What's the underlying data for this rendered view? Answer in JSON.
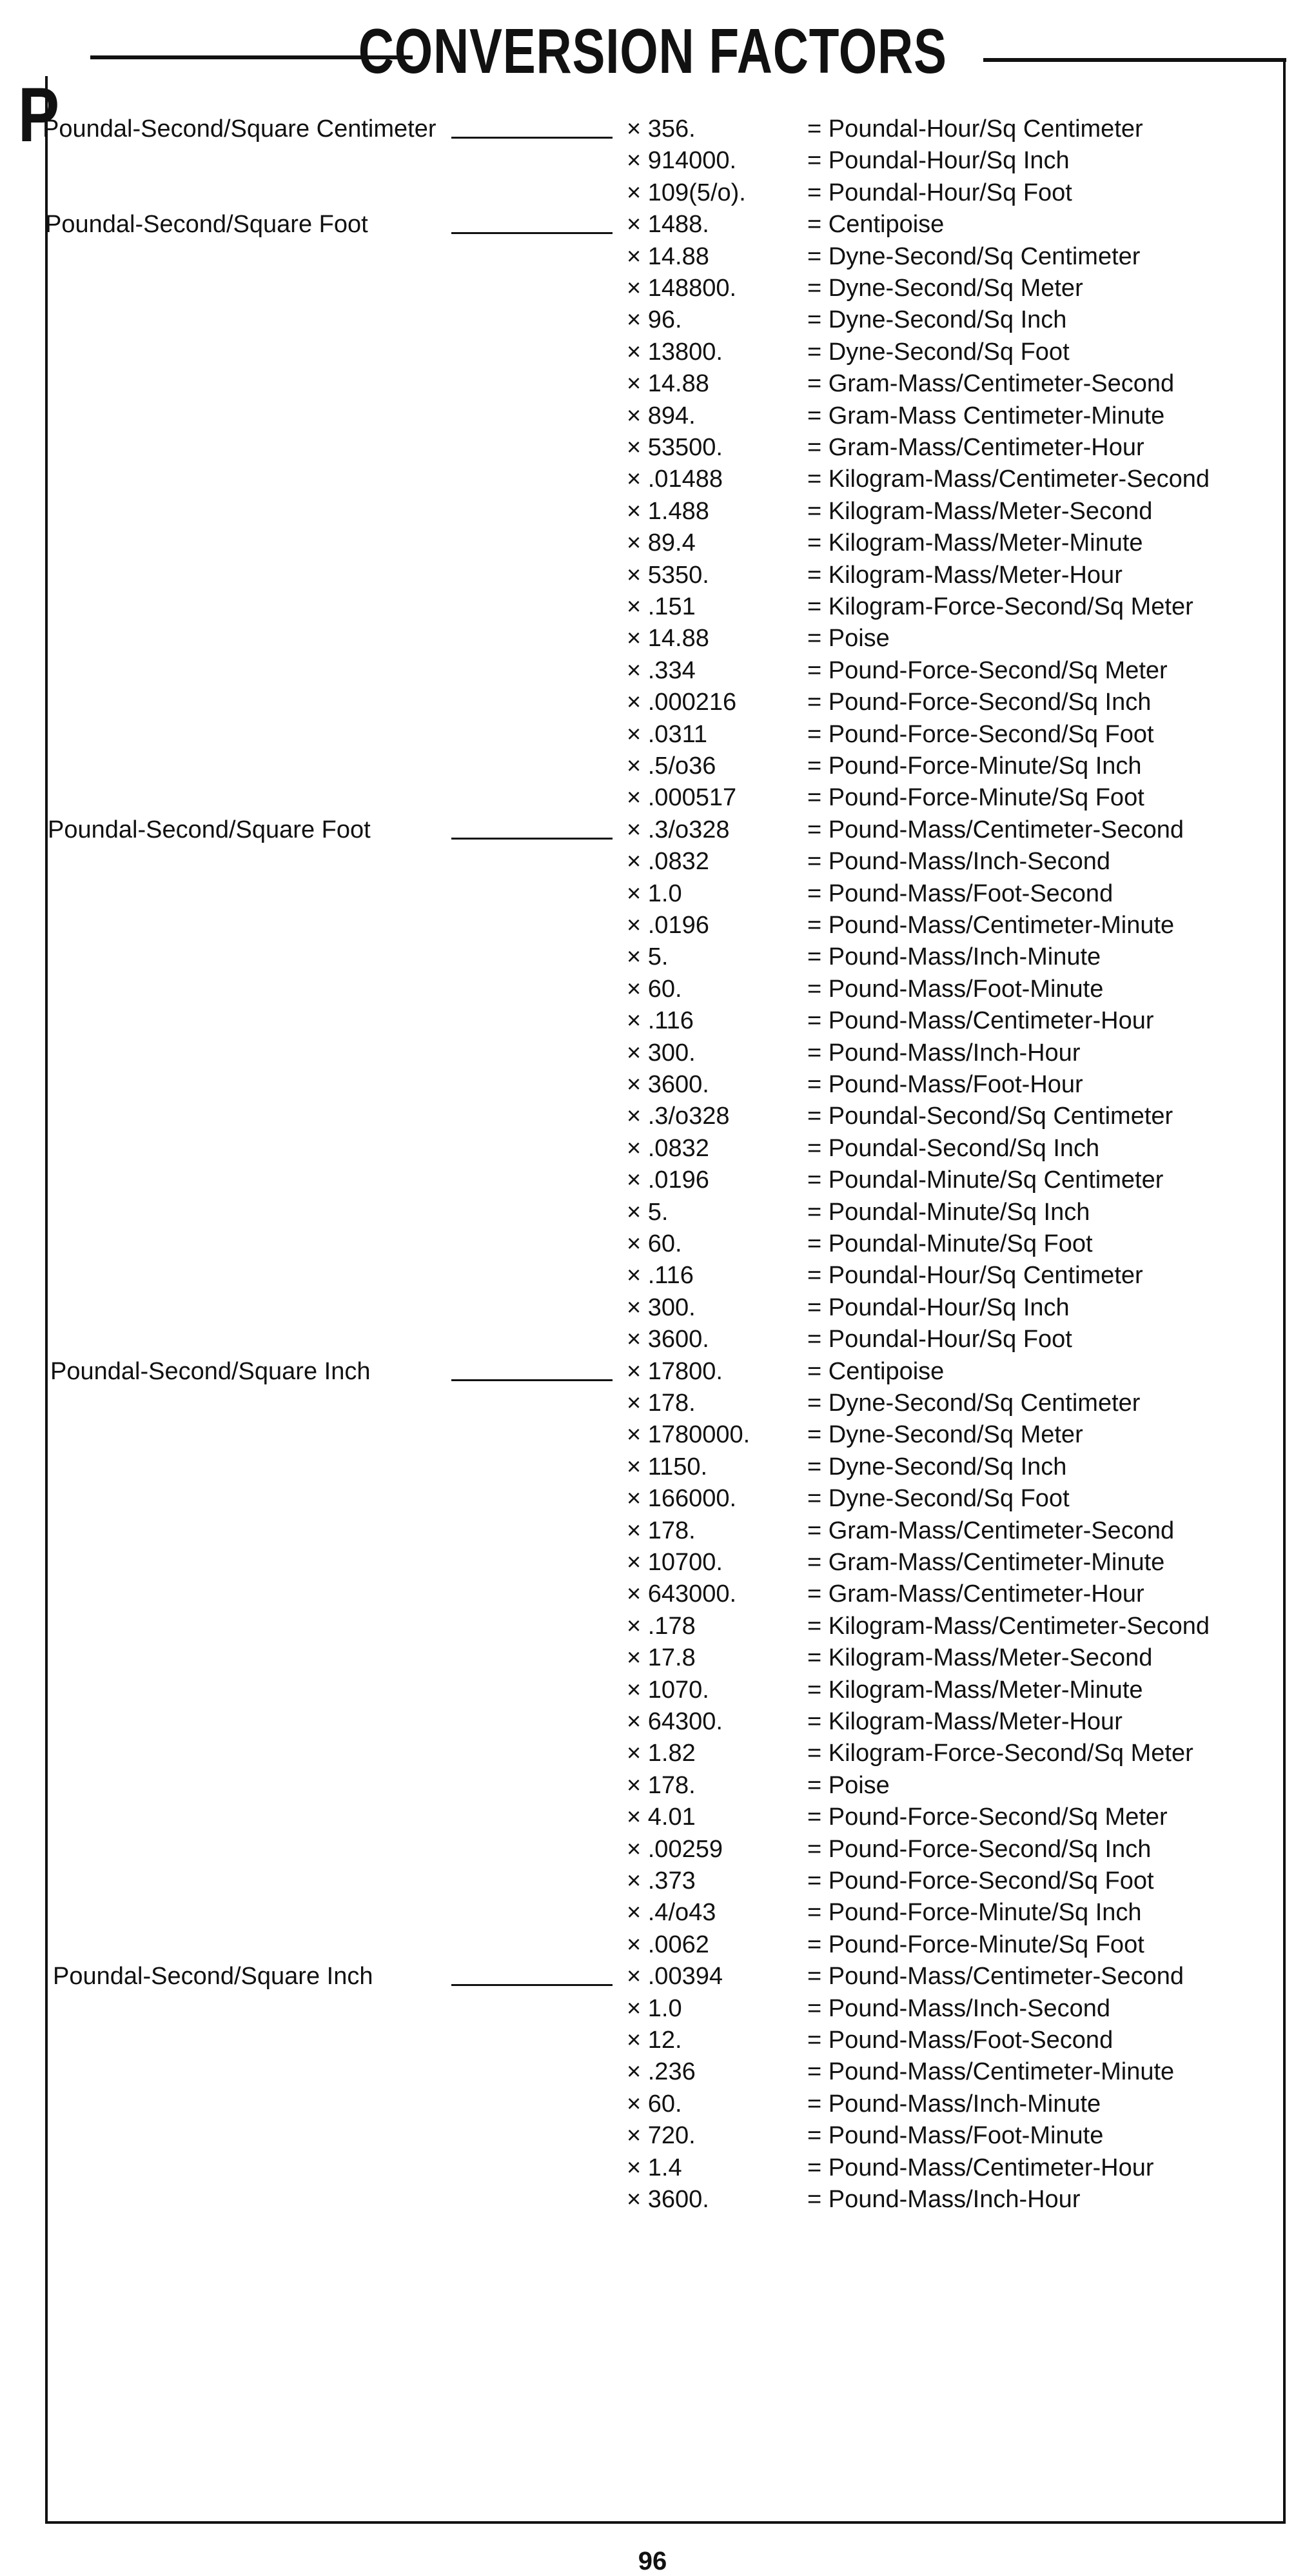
{
  "header": {
    "letter": "P",
    "title": "CONVERSION FACTORS"
  },
  "sections": [
    {
      "label": "Poundal-Second/Square Centimeter",
      "rows": [
        [
          "× 356.",
          "= Poundal-Hour/Sq Centimeter"
        ],
        [
          "× 914000.",
          "= Poundal-Hour/Sq Inch"
        ],
        [
          "× 109(5/o).",
          "= Poundal-Hour/Sq Foot"
        ]
      ]
    },
    {
      "label": "Poundal-Second/Square Foot",
      "rows": [
        [
          "× 1488.",
          "= Centipoise"
        ],
        [
          "× 14.88",
          "= Dyne-Second/Sq Centimeter"
        ],
        [
          "× 148800.",
          "= Dyne-Second/Sq Meter"
        ],
        [
          "× 96.",
          "= Dyne-Second/Sq Inch"
        ],
        [
          "× 13800.",
          "= Dyne-Second/Sq Foot"
        ],
        [
          "× 14.88",
          "= Gram-Mass/Centimeter-Second"
        ],
        [
          "× 894.",
          "= Gram-Mass Centimeter-Minute"
        ],
        [
          "× 53500.",
          "= Gram-Mass/Centimeter-Hour"
        ],
        [
          "× .01488",
          "= Kilogram-Mass/Centimeter-Second"
        ],
        [
          "× 1.488",
          "= Kilogram-Mass/Meter-Second"
        ],
        [
          "× 89.4",
          "= Kilogram-Mass/Meter-Minute"
        ],
        [
          "× 5350.",
          "= Kilogram-Mass/Meter-Hour"
        ],
        [
          "× .151",
          "= Kilogram-Force-Second/Sq Meter"
        ],
        [
          "× 14.88",
          "= Poise"
        ],
        [
          "× .334",
          "= Pound-Force-Second/Sq Meter"
        ],
        [
          "× .000216",
          "= Pound-Force-Second/Sq Inch"
        ],
        [
          "× .0311",
          "= Pound-Force-Second/Sq Foot"
        ],
        [
          "× .5/o36",
          "= Pound-Force-Minute/Sq Inch"
        ],
        [
          "× .000517",
          "= Pound-Force-Minute/Sq Foot"
        ]
      ]
    },
    {
      "label": "Poundal-Second/Square Foot",
      "rows": [
        [
          "× .3/o328",
          "= Pound-Mass/Centimeter-Second"
        ],
        [
          "× .0832",
          "= Pound-Mass/Inch-Second"
        ],
        [
          "× 1.0",
          "= Pound-Mass/Foot-Second"
        ],
        [
          "× .0196",
          "= Pound-Mass/Centimeter-Minute"
        ],
        [
          "× 5.",
          "= Pound-Mass/Inch-Minute"
        ],
        [
          "× 60.",
          "= Pound-Mass/Foot-Minute"
        ],
        [
          "× .116",
          "= Pound-Mass/Centimeter-Hour"
        ],
        [
          "× 300.",
          "= Pound-Mass/Inch-Hour"
        ],
        [
          "× 3600.",
          "= Pound-Mass/Foot-Hour"
        ],
        [
          "× .3/o328",
          "= Poundal-Second/Sq Centimeter"
        ],
        [
          "× .0832",
          "= Poundal-Second/Sq Inch"
        ],
        [
          "× .0196",
          "= Poundal-Minute/Sq Centimeter"
        ],
        [
          "× 5.",
          "= Poundal-Minute/Sq Inch"
        ],
        [
          "× 60.",
          "= Poundal-Minute/Sq Foot"
        ],
        [
          "× .116",
          "= Poundal-Hour/Sq Centimeter"
        ],
        [
          "× 300.",
          "= Poundal-Hour/Sq Inch"
        ],
        [
          "× 3600.",
          "= Poundal-Hour/Sq Foot"
        ]
      ]
    },
    {
      "label": "Poundal-Second/Square Inch",
      "rows": [
        [
          "× 17800.",
          "= Centipoise"
        ],
        [
          "× 178.",
          "= Dyne-Second/Sq Centimeter"
        ],
        [
          "× 1780000.",
          "= Dyne-Second/Sq Meter"
        ],
        [
          "× 1150.",
          "= Dyne-Second/Sq Inch"
        ],
        [
          "× 166000.",
          "= Dyne-Second/Sq Foot"
        ],
        [
          "× 178.",
          "= Gram-Mass/Centimeter-Second"
        ],
        [
          "× 10700.",
          "= Gram-Mass/Centimeter-Minute"
        ],
        [
          "× 643000.",
          "= Gram-Mass/Centimeter-Hour"
        ],
        [
          "× .178",
          "= Kilogram-Mass/Centimeter-Second"
        ],
        [
          "× 17.8",
          "= Kilogram-Mass/Meter-Second"
        ],
        [
          "× 1070.",
          "= Kilogram-Mass/Meter-Minute"
        ],
        [
          "× 64300.",
          "= Kilogram-Mass/Meter-Hour"
        ],
        [
          "× 1.82",
          "= Kilogram-Force-Second/Sq Meter"
        ],
        [
          "× 178.",
          "= Poise"
        ],
        [
          "× 4.01",
          "= Pound-Force-Second/Sq Meter"
        ],
        [
          "× .00259",
          "= Pound-Force-Second/Sq Inch"
        ],
        [
          "× .373",
          "= Pound-Force-Second/Sq Foot"
        ],
        [
          "× .4/o43",
          "= Pound-Force-Minute/Sq Inch"
        ],
        [
          "× .0062",
          "= Pound-Force-Minute/Sq Foot"
        ]
      ]
    },
    {
      "label": "Poundal-Second/Square Inch",
      "rows": [
        [
          "× .00394",
          "= Pound-Mass/Centimeter-Second"
        ],
        [
          "× 1.0",
          "= Pound-Mass/Inch-Second"
        ],
        [
          "× 12.",
          "= Pound-Mass/Foot-Second"
        ],
        [
          "× .236",
          "= Pound-Mass/Centimeter-Minute"
        ],
        [
          "× 60.",
          "= Pound-Mass/Inch-Minute"
        ],
        [
          "× 720.",
          "= Pound-Mass/Foot-Minute"
        ],
        [
          "× 1.4",
          "= Pound-Mass/Centimeter-Hour"
        ],
        [
          "× 3600.",
          "= Pound-Mass/Inch-Hour"
        ]
      ]
    }
  ],
  "footer": {
    "page_number": "96"
  }
}
